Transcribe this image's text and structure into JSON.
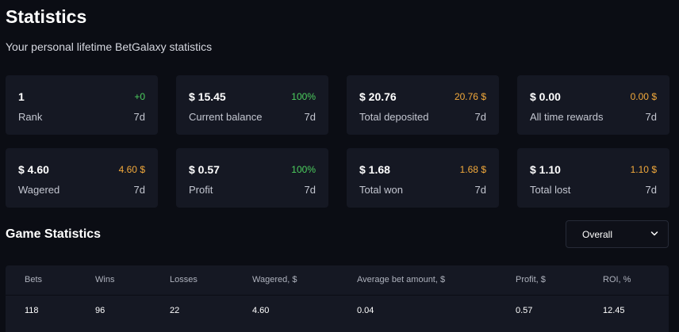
{
  "header": {
    "title": "Statistics",
    "subtitle": "Your personal lifetime BetGalaxy statistics"
  },
  "cards": [
    {
      "value": "1",
      "change": "+0",
      "change_color": "green",
      "label": "Rank",
      "period": "7d"
    },
    {
      "value": "$ 15.45",
      "change": "100%",
      "change_color": "green",
      "label": "Current balance",
      "period": "7d"
    },
    {
      "value": "$ 20.76",
      "change": "20.76 $",
      "change_color": "orange",
      "label": "Total deposited",
      "period": "7d"
    },
    {
      "value": "$ 0.00",
      "change": "0.00 $",
      "change_color": "orange",
      "label": "All time rewards",
      "period": "7d"
    },
    {
      "value": "$ 4.60",
      "change": "4.60 $",
      "change_color": "orange",
      "label": "Wagered",
      "period": "7d"
    },
    {
      "value": "$ 0.57",
      "change": "100%",
      "change_color": "green",
      "label": "Profit",
      "period": "7d"
    },
    {
      "value": "$ 1.68",
      "change": "1.68 $",
      "change_color": "orange",
      "label": "Total won",
      "period": "7d"
    },
    {
      "value": "$ 1.10",
      "change": "1.10 $",
      "change_color": "orange",
      "label": "Total lost",
      "period": "7d"
    }
  ],
  "game_statistics": {
    "title": "Game Statistics",
    "dropdown": {
      "selected": "Overall",
      "icon": "chevron-down-icon"
    },
    "columns": [
      "Bets",
      "Wins",
      "Losses",
      "Wagered, $",
      "Average bet amount, $",
      "Profit, $",
      "ROI, %"
    ],
    "rows": [
      [
        "118",
        "96",
        "22",
        "4.60",
        "0.04",
        "0.57",
        "12.45"
      ]
    ]
  },
  "colors": {
    "background": "#0b0d14",
    "card": "#151823",
    "green": "#4ccf5e",
    "orange": "#f2a93b"
  }
}
